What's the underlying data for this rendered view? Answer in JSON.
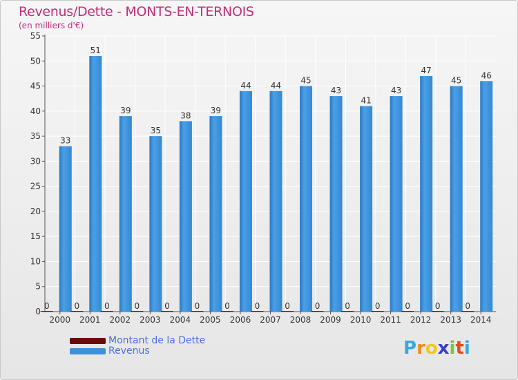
{
  "header": {
    "title": "Revenus/Dette - MONTS-EN-TERNOIS",
    "subtitle": "(en milliers d'€)"
  },
  "legend": [
    {
      "label": "Montant de la Dette",
      "color": "#6b0a0a"
    },
    {
      "label": "Revenus",
      "color": "#3d8fd8"
    }
  ],
  "logo": {
    "text": "Proxiti",
    "letters": [
      "P",
      "r",
      "o",
      "x",
      "i",
      "t",
      "i"
    ],
    "colors": [
      "#38a8e0",
      "#f08c1e",
      "#f0c81e",
      "#3c3cc8",
      "#78c83c",
      "#e0501e",
      "#38a8e0"
    ]
  },
  "colors": {
    "accent": "#c0307a",
    "bar": "#3d8fd8",
    "debt": "#6b0a0a",
    "legend_text": "#4a6fe0"
  },
  "chart_data": {
    "type": "bar",
    "title": "Revenus/Dette - MONTS-EN-TERNOIS",
    "subtitle": "(en milliers d'€)",
    "categories": [
      "2000",
      "2001",
      "2002",
      "2003",
      "2004",
      "2005",
      "2006",
      "2007",
      "2008",
      "2009",
      "2010",
      "2011",
      "2012",
      "2013",
      "2014"
    ],
    "series": [
      {
        "name": "Montant de la Dette",
        "values": [
          0,
          0,
          0,
          0,
          0,
          0,
          0,
          0,
          0,
          0,
          0,
          0,
          0,
          0,
          0
        ]
      },
      {
        "name": "Revenus",
        "values": [
          33,
          51,
          39,
          35,
          38,
          39,
          44,
          44,
          45,
          43,
          41,
          43,
          47,
          45,
          46
        ]
      }
    ],
    "ylim": [
      0,
      55
    ],
    "yticks": [
      0,
      5,
      10,
      15,
      20,
      25,
      30,
      35,
      40,
      45,
      50,
      55
    ],
    "grid": true,
    "legend_position": "bottom-left"
  }
}
